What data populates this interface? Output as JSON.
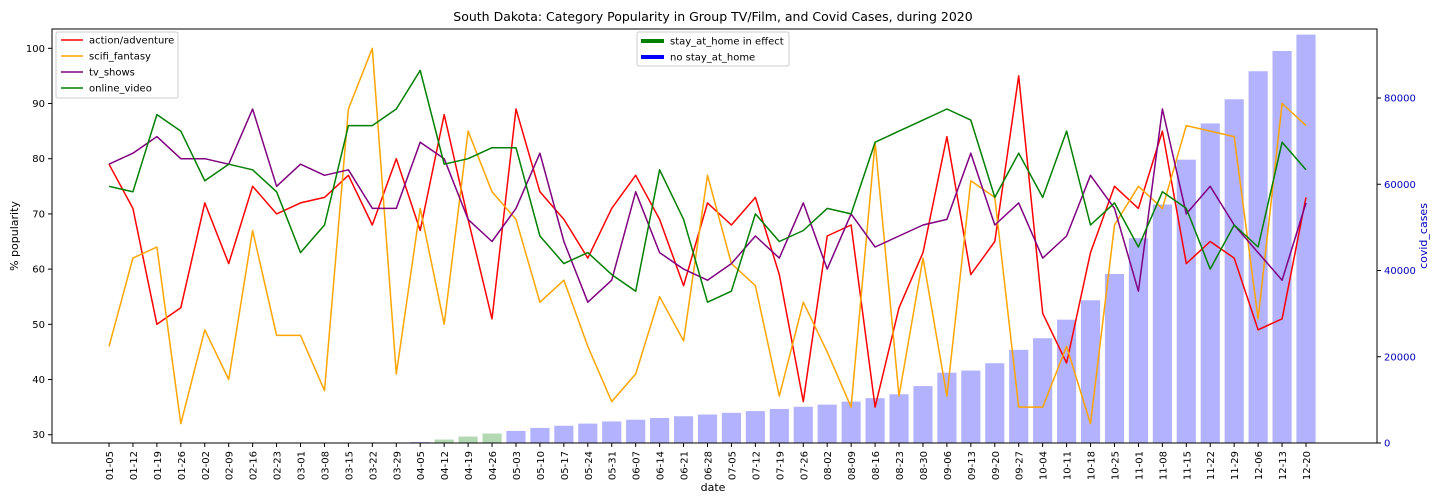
{
  "chart_data": {
    "type": "line",
    "title": "South Dakota: Category Popularity in Group TV/Film, and Covid Cases, during 2020",
    "xlabel": "date",
    "ylabel": "% popularity",
    "y2label": "covid_cases",
    "ylim": [
      28.5,
      103.5
    ],
    "y2lim": [
      0,
      96000
    ],
    "yticks": [
      30,
      40,
      50,
      60,
      70,
      80,
      90,
      100
    ],
    "y2ticks": [
      0,
      20000,
      40000,
      60000,
      80000
    ],
    "categories": [
      "01-05",
      "01-12",
      "01-19",
      "01-26",
      "02-02",
      "02-09",
      "02-16",
      "02-23",
      "03-01",
      "03-08",
      "03-15",
      "03-22",
      "03-29",
      "04-05",
      "04-12",
      "04-19",
      "04-26",
      "05-03",
      "05-10",
      "05-17",
      "05-24",
      "05-31",
      "06-07",
      "06-14",
      "06-21",
      "06-28",
      "07-05",
      "07-12",
      "07-19",
      "07-26",
      "08-02",
      "08-09",
      "08-16",
      "08-23",
      "08-30",
      "09-06",
      "09-13",
      "09-20",
      "09-27",
      "10-04",
      "10-11",
      "10-18",
      "10-25",
      "11-01",
      "11-08",
      "11-15",
      "11-22",
      "11-29",
      "12-06",
      "12-13",
      "12-20"
    ],
    "series": [
      {
        "name": "action/adventure",
        "color": "#ff0000",
        "values": [
          79,
          71,
          50,
          53,
          72,
          61,
          75,
          70,
          72,
          73,
          77,
          68,
          80,
          67,
          88,
          69,
          51,
          89,
          74,
          69,
          62,
          71,
          77,
          69,
          57,
          72,
          68,
          73,
          59,
          36,
          66,
          68,
          35,
          53,
          63,
          84,
          59,
          65,
          95,
          52,
          43,
          63,
          75,
          71,
          85,
          61,
          65,
          62,
          49,
          51,
          73
        ]
      },
      {
        "name": "scifi_fantasy",
        "color": "#ffa500",
        "values": [
          46,
          62,
          64,
          32,
          49,
          40,
          67,
          48,
          48,
          38,
          89,
          100,
          41,
          71,
          50,
          85,
          74,
          69,
          54,
          58,
          46,
          36,
          41,
          55,
          47,
          77,
          61,
          57,
          37,
          54,
          45,
          35,
          83,
          37,
          62,
          37,
          76,
          73,
          35,
          35,
          46,
          32,
          68,
          75,
          71,
          86,
          85,
          84,
          51,
          90,
          86
        ]
      },
      {
        "name": "tv_shows",
        "color": "#800080",
        "values": [
          79,
          81,
          84,
          80,
          80,
          79,
          89,
          75,
          79,
          77,
          78,
          71,
          71,
          83,
          80,
          69,
          65,
          71,
          81,
          65,
          54,
          58,
          74,
          63,
          60,
          58,
          61,
          66,
          62,
          72,
          60,
          70,
          64,
          66,
          68,
          69,
          81,
          68,
          72,
          62,
          66,
          77,
          71,
          56,
          89,
          70,
          75,
          68,
          63,
          58,
          72
        ]
      },
      {
        "name": "online_video",
        "color": "#008000",
        "values": [
          75,
          74,
          88,
          85,
          76,
          79,
          78,
          74,
          63,
          68,
          86,
          86,
          89,
          96,
          79,
          80,
          82,
          82,
          66,
          61,
          63,
          59,
          56,
          78,
          69,
          54,
          56,
          70,
          65,
          67,
          71,
          70,
          83,
          85,
          87,
          89,
          87,
          73,
          81,
          73,
          85,
          68,
          72,
          64,
          74,
          71,
          60,
          68,
          64,
          83,
          78
        ]
      }
    ],
    "bars": {
      "name": "covid_cases",
      "values": [
        0,
        0,
        0,
        0,
        0,
        0,
        0,
        0,
        0,
        0,
        0,
        0,
        0,
        200,
        800,
        1500,
        2200,
        2800,
        3500,
        4000,
        4500,
        5000,
        5400,
        5800,
        6200,
        6600,
        7000,
        7400,
        7900,
        8400,
        8900,
        9600,
        10400,
        11300,
        13200,
        16300,
        16800,
        18500,
        21600,
        24300,
        28600,
        33100,
        39200,
        47500,
        55300,
        65700,
        74100,
        79700,
        86200,
        90900,
        94700
      ],
      "color_stay_at_home": "#008000",
      "color_no_stay_at_home": "#0000ff",
      "stay_at_home_flags": [
        0,
        0,
        0,
        0,
        0,
        0,
        0,
        0,
        0,
        0,
        0,
        0,
        0,
        0,
        1,
        1,
        1,
        0,
        0,
        0,
        0,
        0,
        0,
        0,
        0,
        0,
        0,
        0,
        0,
        0,
        0,
        0,
        0,
        0,
        0,
        0,
        0,
        0,
        0,
        0,
        0,
        0,
        0,
        0,
        0,
        0,
        0,
        0,
        0,
        0,
        0
      ]
    },
    "bar_legend": [
      {
        "label": "stay_at_home in effect",
        "color": "#008000"
      },
      {
        "label": "no stay_at_home",
        "color": "#0000ff"
      }
    ],
    "legend_position": "top-left",
    "bar_legend_position": "top-center",
    "y2_tick_color": "#0000bb",
    "grid": false
  }
}
